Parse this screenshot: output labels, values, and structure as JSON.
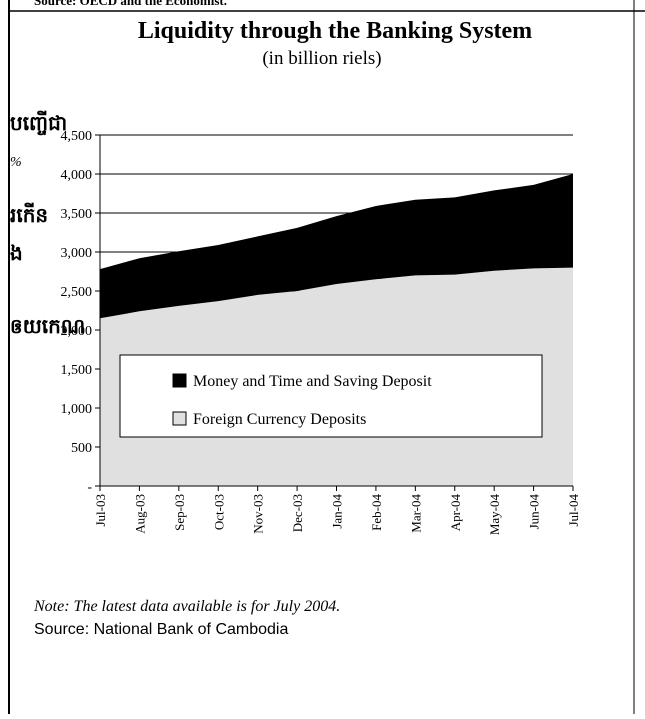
{
  "page_header": "Source: OECD and the Economist.",
  "side_fragments": [
    "បញ្ចើជា",
    "%",
    "រកើន",
    "ង",
    "ឲយកេណ"
  ],
  "chart_data": {
    "type": "stacked_area",
    "title": "Liquidity through the Banking System",
    "subtitle": "(in billion riels)",
    "categories": [
      "Jul-03",
      "Aug-03",
      "Sep-03",
      "Oct-03",
      "Nov-03",
      "Dec-03",
      "Jan-04",
      "Feb-04",
      "Mar-04",
      "Apr-04",
      "May-04",
      "Jun-04",
      "Jul-04"
    ],
    "series": [
      {
        "name": "Foreign Currency Deposits",
        "color": "#e0e0e0",
        "values": [
          2150,
          2240,
          2310,
          2370,
          2450,
          2500,
          2590,
          2650,
          2700,
          2710,
          2760,
          2790,
          2800
        ]
      },
      {
        "name": "Money and Time and Saving Deposit",
        "color": "#000000",
        "values": [
          630,
          680,
          700,
          720,
          750,
          810,
          870,
          940,
          970,
          990,
          1030,
          1070,
          1200
        ]
      }
    ],
    "ylim": [
      0,
      4500
    ],
    "yticks": [
      {
        "value": 0,
        "label": "-"
      },
      500,
      {
        "value": 1000,
        "label": "1,000"
      },
      {
        "value": 1500,
        "label": "1,500"
      },
      {
        "value": 2000,
        "label": "2,000"
      },
      {
        "value": 2500,
        "label": "2,500"
      },
      {
        "value": 3000,
        "label": "3,000"
      },
      {
        "value": 3500,
        "label": "3,500"
      },
      {
        "value": 4000,
        "label": "4,000"
      },
      {
        "value": 4500,
        "label": "4,500"
      }
    ],
    "grid": true,
    "note": "Note: The latest data available is for July 2004.",
    "source": "Source: National Bank of Cambodia"
  }
}
